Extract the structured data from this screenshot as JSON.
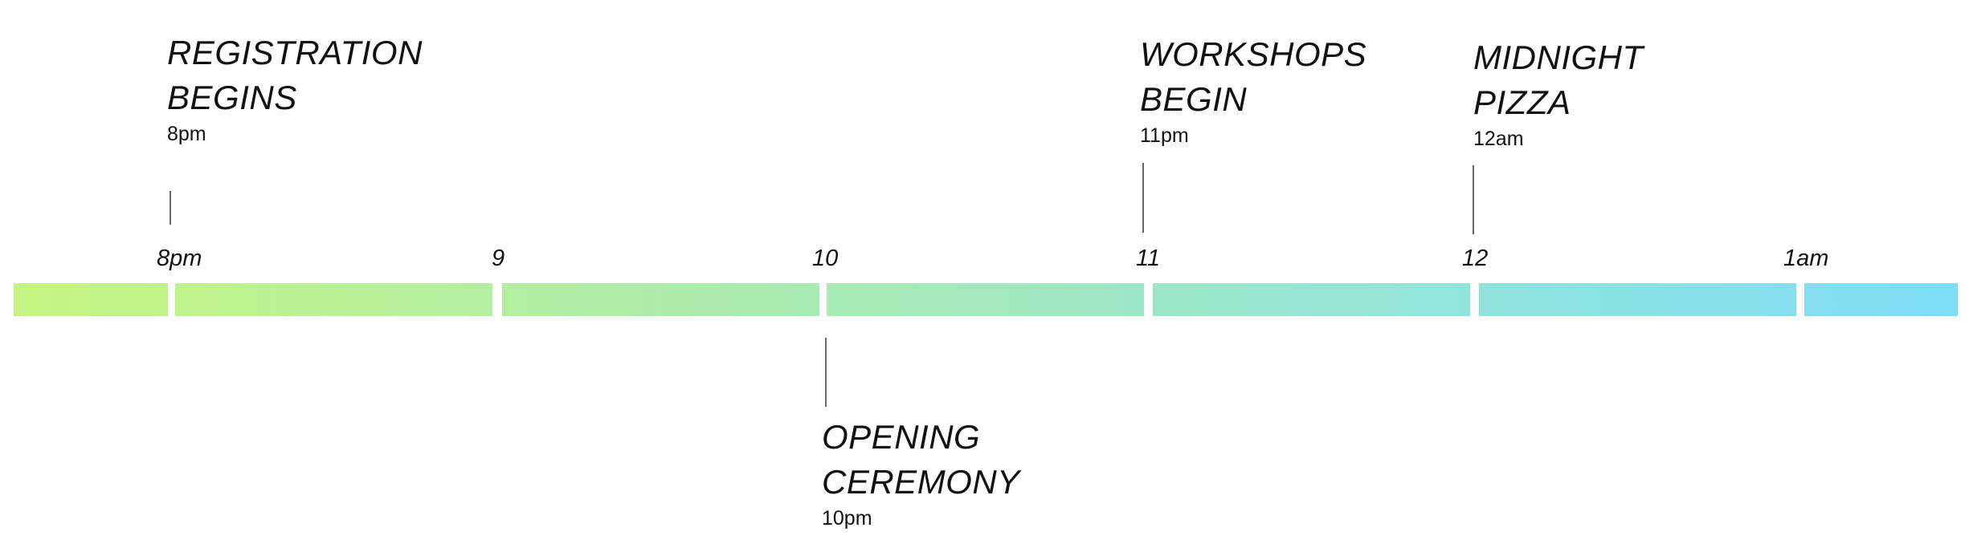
{
  "colors": {
    "gradient_start": "#C4F582",
    "gradient_end": "#80DDF9",
    "line": "#666666",
    "text": "#111111"
  },
  "ticks": [
    "8pm",
    "9",
    "10",
    "11",
    "12",
    "1am"
  ],
  "events": [
    {
      "title": "REGISTRATION\nBEGINS",
      "time": "8pm"
    },
    {
      "title": "WORKSHOPS\nBEGIN",
      "time": "11pm"
    },
    {
      "title": "MIDNIGHT\nPIZZA",
      "time": "12am"
    },
    {
      "title": "OPENING\nCEREMONY",
      "time": "10pm"
    }
  ]
}
